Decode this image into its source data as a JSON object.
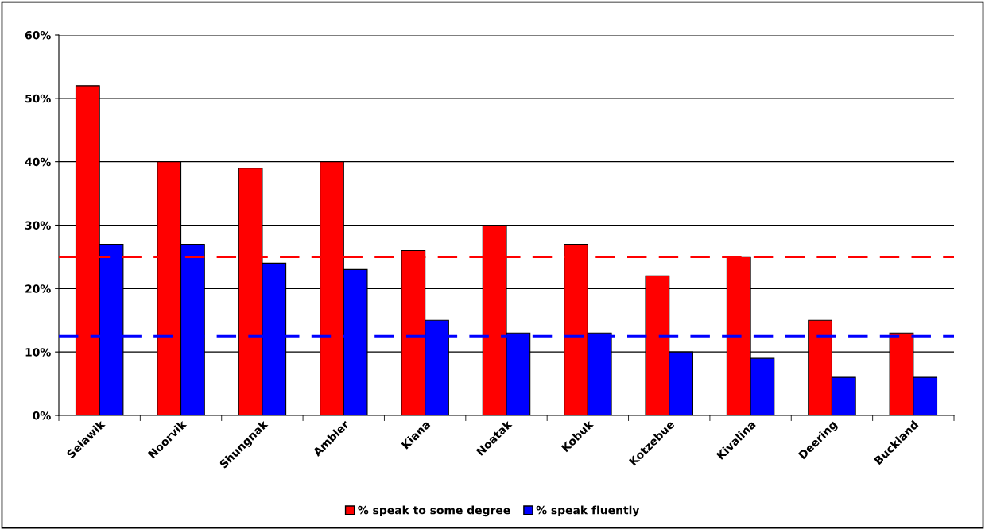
{
  "chart_data": {
    "type": "bar",
    "categories": [
      "Selawik",
      "Noorvik",
      "Shungnak",
      "Ambler",
      "Kiana",
      "Noatak",
      "Kobuk",
      "Kotzebue",
      "Kivalina",
      "Deering",
      "Buckland"
    ],
    "series": [
      {
        "name": "% speak to some degree",
        "color": "#ff0000",
        "values": [
          52,
          40,
          39,
          40,
          26,
          30,
          27,
          22,
          25,
          15,
          13
        ]
      },
      {
        "name": "% speak fluently",
        "color": "#0000ff",
        "values": [
          27,
          27,
          24,
          23,
          15,
          13,
          13,
          10,
          9,
          6,
          6
        ]
      }
    ],
    "ylim": [
      0,
      60
    ],
    "yticks": [
      {
        "value": 0,
        "label": "0%"
      },
      {
        "value": 10,
        "label": "10%"
      },
      {
        "value": 20,
        "label": "20%"
      },
      {
        "value": 30,
        "label": "30%"
      },
      {
        "value": 40,
        "label": "40%"
      },
      {
        "value": 50,
        "label": "50%"
      },
      {
        "value": 60,
        "label": "60%"
      }
    ],
    "ref_lines": [
      {
        "axis": "y",
        "value": 25,
        "color": "#ff0000",
        "line_style": "dashed"
      },
      {
        "axis": "y",
        "value": 12.5,
        "color": "#0000ff",
        "line_style": "dashed"
      }
    ],
    "grid": "y",
    "legend": "bottom"
  }
}
